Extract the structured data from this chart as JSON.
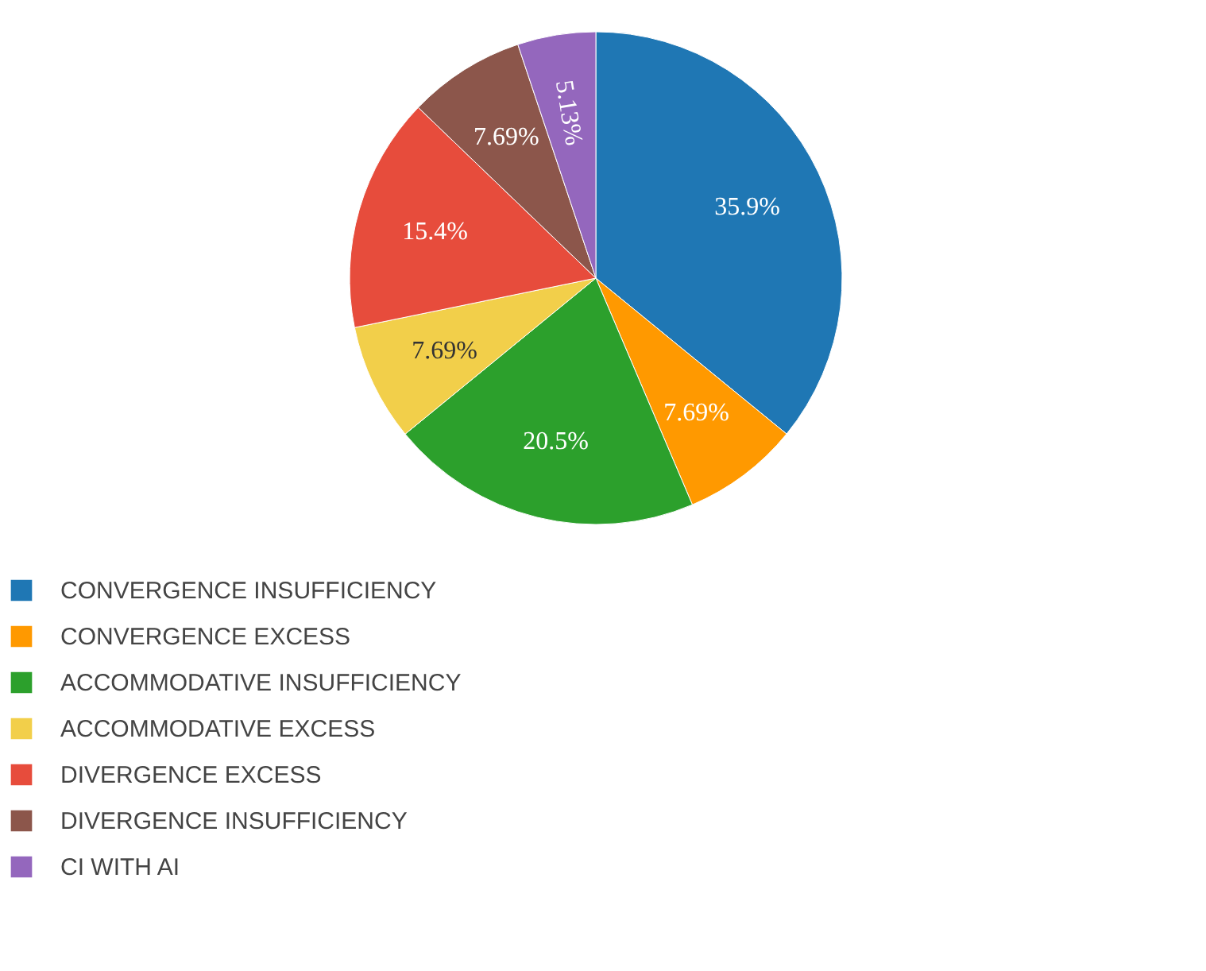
{
  "chart_data": {
    "type": "pie",
    "categories": [
      "CONVERGENCE INSUFFICIENCY",
      "CONVERGENCE EXCESS",
      "ACCOMMODATIVE INSUFFICIENCY",
      "ACCOMMODATIVE EXCESS",
      "DIVERGENCE EXCESS",
      "DIVERGENCE INSUFFICIENCY",
      "CI WITH AI"
    ],
    "values": [
      35.9,
      7.69,
      20.5,
      7.69,
      15.4,
      7.69,
      5.13
    ],
    "colors": [
      "#1f77b4",
      "#ff9900",
      "#2ca02c",
      "#f2cf4a",
      "#e74c3c",
      "#8c564b",
      "#9467bd"
    ],
    "value_labels": [
      "35.9%",
      "7.69%",
      "20.5%",
      "7.69%",
      "15.4%",
      "7.69%",
      "5.13%"
    ],
    "legend": "bottom"
  }
}
